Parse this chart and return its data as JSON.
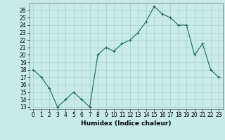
{
  "xlabel": "Humidex (Indice chaleur)",
  "ylabel": "",
  "x": [
    0,
    1,
    2,
    3,
    4,
    5,
    6,
    7,
    8,
    9,
    10,
    11,
    12,
    13,
    14,
    15,
    16,
    17,
    18,
    19,
    20,
    21,
    22,
    23
  ],
  "y": [
    18,
    17,
    15.5,
    13,
    14,
    15,
    14,
    13,
    20,
    21,
    20.5,
    21.5,
    22,
    23,
    24.5,
    26.5,
    25.5,
    25,
    24,
    24,
    20,
    21.5,
    18,
    17
  ],
  "line_color": "#1a6b5a",
  "marker": "+",
  "bg_color": "#c8eaea",
  "grid_color": "#aacfcf",
  "ylim_min": 13,
  "ylim_max": 27,
  "yticks": [
    13,
    14,
    15,
    16,
    17,
    18,
    19,
    20,
    21,
    22,
    23,
    24,
    25,
    26
  ],
  "xlim_min": -0.5,
  "xlim_max": 23.5,
  "xticks": [
    0,
    1,
    2,
    3,
    4,
    5,
    6,
    7,
    8,
    9,
    10,
    11,
    12,
    13,
    14,
    15,
    16,
    17,
    18,
    19,
    20,
    21,
    22,
    23
  ],
  "xlabel_fontsize": 6.5,
  "tick_fontsize": 5.5
}
